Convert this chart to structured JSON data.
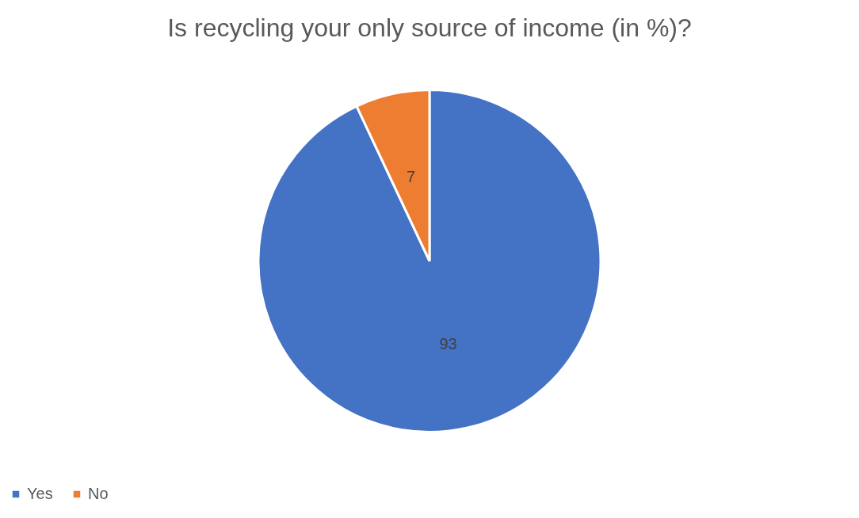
{
  "chart_data": {
    "type": "pie",
    "title": "Is recycling your only source of income (in %)?",
    "categories": [
      "Yes",
      "No"
    ],
    "values": [
      93,
      7
    ],
    "colors": [
      "#4472c4",
      "#ed7d31"
    ],
    "data_labels": true,
    "legend": "bottom"
  }
}
